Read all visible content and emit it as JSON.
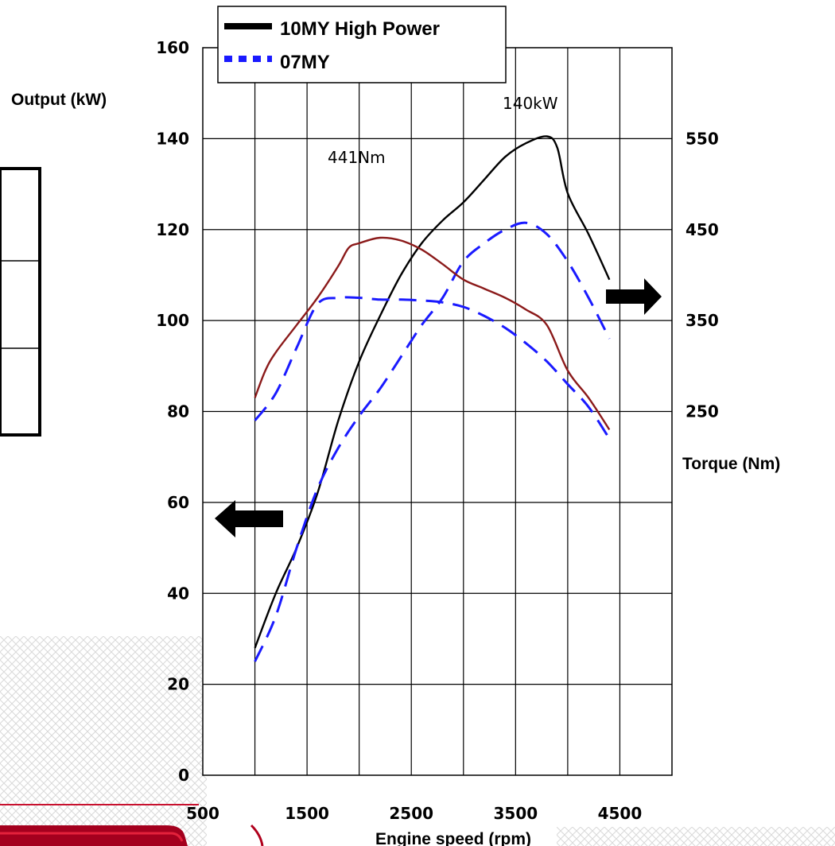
{
  "chart_data": {
    "type": "line",
    "xlabel": "Engine speed (rpm)",
    "ylabel_left": "Output (kW)",
    "ylabel_right": "Torque (Nm)",
    "x_ticks": [
      "500",
      "1500",
      "2500",
      "3500",
      "4500"
    ],
    "xlim": [
      500,
      5000
    ],
    "ylim_left": [
      0,
      160
    ],
    "y_ticks_left": [
      "0",
      "20",
      "40",
      "60",
      "80",
      "100",
      "120",
      "140",
      "160"
    ],
    "ylim_right": [
      -150,
      650
    ],
    "y_ticks_right": [
      "250",
      "350",
      "450",
      "550"
    ],
    "grid": true,
    "legend": {
      "placement": "top",
      "entries": [
        {
          "label": "10MY High Power",
          "color": "#000000",
          "style": "solid"
        },
        {
          "label": "07MY",
          "color": "#1a1aff",
          "style": "dashed"
        }
      ]
    },
    "annotations": {
      "peak_power": "140kW",
      "peak_torque": "441Nm"
    },
    "series": [
      {
        "name": "10MY High Power",
        "kind": "output",
        "axis": "left",
        "color": "#000000",
        "dash": "solid",
        "x": [
          1000,
          1200,
          1400,
          1600,
          1800,
          2000,
          2200,
          2400,
          2600,
          2800,
          3000,
          3200,
          3400,
          3600,
          3800,
          3900,
          4000,
          4200,
          4400
        ],
        "y": [
          28,
          40,
          50,
          62,
          78,
          91,
          101,
          110,
          117,
          122,
          126,
          131,
          136,
          139,
          140.5,
          138,
          128,
          119,
          109
        ]
      },
      {
        "name": "07MY",
        "kind": "output",
        "axis": "left",
        "color": "#1a1aff",
        "dash": "dashed",
        "x": [
          1000,
          1200,
          1400,
          1600,
          1800,
          2000,
          2200,
          2400,
          2600,
          2800,
          3000,
          3200,
          3400,
          3600,
          3800,
          4000,
          4200,
          4400
        ],
        "y": [
          25,
          35,
          50,
          63,
          72,
          79,
          85,
          92,
          99,
          105,
          113,
          117,
          120,
          121.5,
          119,
          113,
          105,
          96
        ]
      },
      {
        "name": "10MY High Power",
        "kind": "torque",
        "axis": "right",
        "color": "#8b1a1a",
        "dash": "solid",
        "x": [
          1000,
          1100,
          1200,
          1400,
          1600,
          1800,
          1900,
          2000,
          2200,
          2400,
          2600,
          2800,
          3000,
          3200,
          3400,
          3600,
          3800,
          4000,
          4200,
          4400
        ],
        "y": [
          265,
          295,
          315,
          345,
          375,
          410,
          430,
          435,
          441,
          438,
          428,
          412,
          395,
          385,
          375,
          362,
          345,
          295,
          265,
          230
        ]
      },
      {
        "name": "07MY",
        "kind": "torque",
        "axis": "right",
        "color": "#1a1aff",
        "dash": "dashed",
        "x": [
          1000,
          1200,
          1400,
          1600,
          1800,
          2000,
          2200,
          2400,
          2600,
          2800,
          3000,
          3200,
          3400,
          3600,
          3800,
          4000,
          4200,
          4400
        ],
        "y": [
          240,
          270,
          320,
          368,
          375,
          375,
          373,
          373,
          372,
          370,
          365,
          355,
          342,
          325,
          305,
          280,
          255,
          220
        ]
      }
    ]
  }
}
